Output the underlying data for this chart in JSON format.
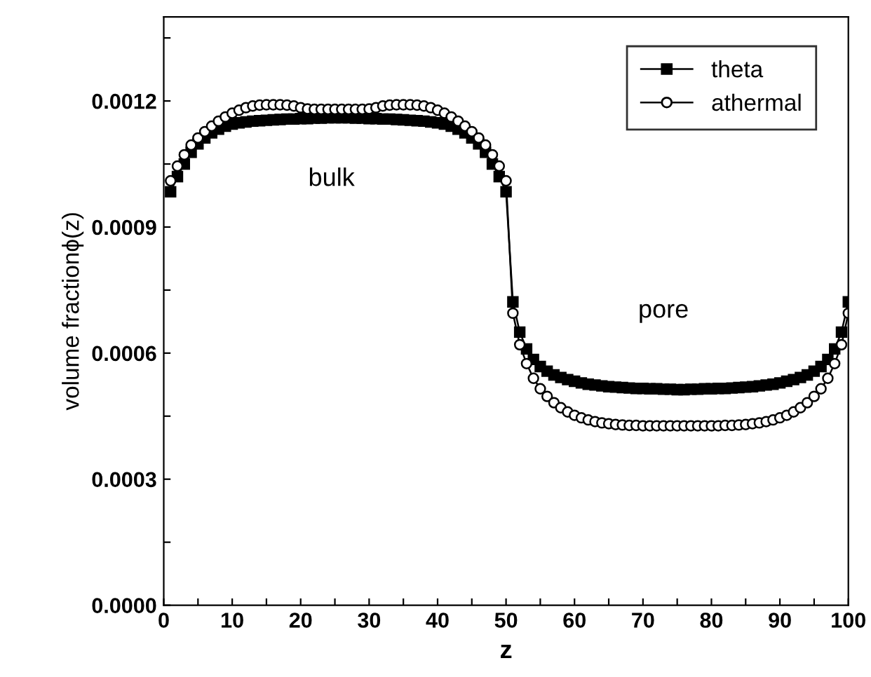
{
  "chart_data": {
    "type": "line",
    "xlabel": "z",
    "ylabel": "volume fractionϕ(z)",
    "x": [
      1,
      2,
      3,
      4,
      5,
      6,
      7,
      8,
      9,
      10,
      11,
      12,
      13,
      14,
      15,
      16,
      17,
      18,
      19,
      20,
      21,
      22,
      23,
      24,
      25,
      26,
      27,
      28,
      29,
      30,
      31,
      32,
      33,
      34,
      35,
      36,
      37,
      38,
      39,
      40,
      41,
      42,
      43,
      44,
      45,
      46,
      47,
      48,
      49,
      50,
      51,
      52,
      53,
      54,
      55,
      56,
      57,
      58,
      59,
      60,
      61,
      62,
      63,
      64,
      65,
      66,
      67,
      68,
      69,
      70,
      71,
      72,
      73,
      74,
      75,
      76,
      77,
      78,
      79,
      80,
      81,
      82,
      83,
      84,
      85,
      86,
      87,
      88,
      89,
      90,
      91,
      92,
      93,
      94,
      95,
      96,
      97,
      98,
      99,
      100
    ],
    "series": [
      {
        "name": "theta",
        "color": "#000000",
        "marker": "square",
        "values": [
          0.000984,
          0.00102,
          0.00105,
          0.001078,
          0.001098,
          0.001112,
          0.001124,
          0.001133,
          0.00114,
          0.001145,
          0.001148,
          0.00115,
          0.001152,
          0.001153,
          0.001154,
          0.001155,
          0.001156,
          0.001157,
          0.001157,
          0.001158,
          0.001158,
          0.001159,
          0.001159,
          0.00116,
          0.00116,
          0.00116,
          0.00116,
          0.001159,
          0.001159,
          0.001158,
          0.001158,
          0.001157,
          0.001157,
          0.001156,
          0.001155,
          0.001154,
          0.001153,
          0.001152,
          0.00115,
          0.001148,
          0.001145,
          0.00114,
          0.001133,
          0.001124,
          0.001112,
          0.001098,
          0.001078,
          0.00105,
          0.00102,
          0.000984,
          0.000722,
          0.00065,
          0.00061,
          0.000585,
          0.000568,
          0.000557,
          0.000548,
          0.000542,
          0.000537,
          0.000533,
          0.000529,
          0.000526,
          0.000524,
          0.000522,
          0.00052,
          0.000519,
          0.000518,
          0.000517,
          0.000516,
          0.000516,
          0.000515,
          0.000515,
          0.000514,
          0.000514,
          0.000513,
          0.000513,
          0.000514,
          0.000514,
          0.000515,
          0.000515,
          0.000516,
          0.000516,
          0.000517,
          0.000518,
          0.000519,
          0.00052,
          0.000522,
          0.000524,
          0.000526,
          0.000529,
          0.000533,
          0.000537,
          0.000542,
          0.000548,
          0.000557,
          0.000568,
          0.000585,
          0.00061,
          0.00065,
          0.000722
        ]
      },
      {
        "name": "athermal",
        "color": "#000000",
        "marker": "circle",
        "values": [
          0.00101,
          0.001045,
          0.001072,
          0.001095,
          0.001112,
          0.001127,
          0.00114,
          0.001152,
          0.001162,
          0.001171,
          0.001178,
          0.001184,
          0.001188,
          0.00119,
          0.001191,
          0.001191,
          0.001191,
          0.00119,
          0.001188,
          0.001184,
          0.001181,
          0.00118,
          0.00118,
          0.00118,
          0.00118,
          0.00118,
          0.00118,
          0.00118,
          0.00118,
          0.001181,
          0.001184,
          0.001188,
          0.00119,
          0.001191,
          0.001191,
          0.001191,
          0.00119,
          0.001188,
          0.001184,
          0.001178,
          0.001171,
          0.001162,
          0.001152,
          0.00114,
          0.001127,
          0.001112,
          0.001095,
          0.001072,
          0.001045,
          0.00101,
          0.000695,
          0.00062,
          0.000575,
          0.00054,
          0.000515,
          0.000497,
          0.000482,
          0.00047,
          0.00046,
          0.000452,
          0.000446,
          0.000441,
          0.000437,
          0.000434,
          0.000432,
          0.00043,
          0.000429,
          0.000428,
          0.000428,
          0.000427,
          0.000427,
          0.000427,
          0.000427,
          0.000427,
          0.000427,
          0.000427,
          0.000427,
          0.000427,
          0.000427,
          0.000427,
          0.000427,
          0.000428,
          0.000428,
          0.000429,
          0.00043,
          0.000432,
          0.000434,
          0.000437,
          0.000441,
          0.000446,
          0.000452,
          0.00046,
          0.00047,
          0.000482,
          0.000497,
          0.000515,
          0.00054,
          0.000575,
          0.00062,
          0.000695
        ]
      }
    ],
    "xlim": [
      0,
      100
    ],
    "xticks": [
      0,
      {
        "value": 5,
        "label": null
      },
      10,
      {
        "value": 15,
        "label": null
      },
      20,
      {
        "value": 25,
        "label": null
      },
      30,
      {
        "value": 35,
        "label": null
      },
      40,
      {
        "value": 45,
        "label": null
      },
      50,
      {
        "value": 55,
        "label": null
      },
      60,
      {
        "value": 65,
        "label": null
      },
      70,
      {
        "value": 75,
        "label": null
      },
      80,
      {
        "value": 85,
        "label": null
      },
      90,
      {
        "value": 95,
        "label": null
      },
      100
    ],
    "ylim": [
      0,
      0.0014
    ],
    "yticks": [
      {
        "value": 0,
        "label": "0.0000"
      },
      {
        "value": 0.00015,
        "label": null
      },
      {
        "value": 0.0003,
        "label": "0.0003"
      },
      {
        "value": 0.00045,
        "label": null
      },
      {
        "value": 0.0006,
        "label": "0.0006"
      },
      {
        "value": 0.00075,
        "label": null
      },
      {
        "value": 0.0009,
        "label": "0.0009"
      },
      {
        "value": 0.00105,
        "label": null
      },
      {
        "value": 0.0012,
        "label": "0.0012"
      },
      {
        "value": 0.00135,
        "label": null
      }
    ],
    "annotations": [
      "bulk",
      "pore"
    ],
    "legend": "top right",
    "grid": false,
    "line_style": "solid"
  }
}
